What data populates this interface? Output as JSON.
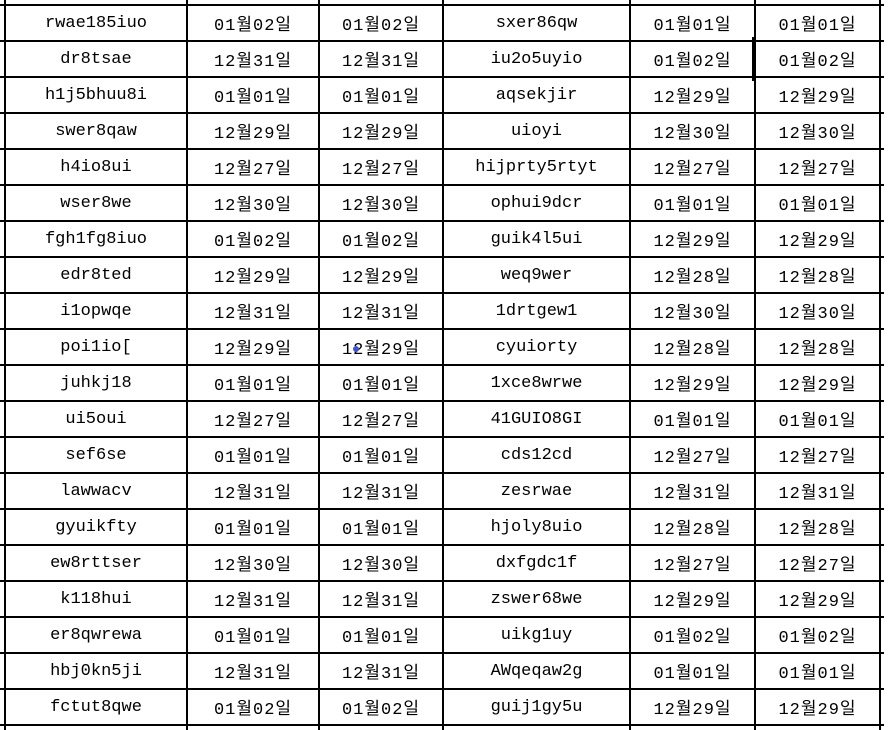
{
  "app": {
    "kind": "spreadsheet-grid",
    "grid_line_color": "#000000",
    "text_color": "#000000",
    "background_color": "#ffffff"
  },
  "annotations": {
    "blue_dot_color": "#4053cb",
    "blue_dot_cell": "row 10, second date column"
  },
  "table": {
    "columns": [
      {
        "name": "id-left"
      },
      {
        "name": "date-left-1"
      },
      {
        "name": "date-left-2"
      },
      {
        "name": "id-right"
      },
      {
        "name": "date-right-1"
      },
      {
        "name": "date-right-2"
      }
    ],
    "rows": [
      [
        "rwae185iuo",
        "01월02일",
        "01월02일",
        "sxer86qw",
        "01월01일",
        "01월01일"
      ],
      [
        "dr8tsae",
        "12월31일",
        "12월31일",
        "iu2o5uyio",
        "01월02일",
        "01월02일"
      ],
      [
        "h1j5bhuu8i",
        "01월01일",
        "01월01일",
        "aqsekjir",
        "12월29일",
        "12월29일"
      ],
      [
        "swer8qaw",
        "12월29일",
        "12월29일",
        "uioyi",
        "12월30일",
        "12월30일"
      ],
      [
        "h4io8ui",
        "12월27일",
        "12월27일",
        "hijprty5rtyt",
        "12월27일",
        "12월27일"
      ],
      [
        "wser8we",
        "12월30일",
        "12월30일",
        "ophui9dcr",
        "01월01일",
        "01월01일"
      ],
      [
        "fgh1fg8iuo",
        "01월02일",
        "01월02일",
        "guik4l5ui",
        "12월29일",
        "12월29일"
      ],
      [
        "edr8ted",
        "12월29일",
        "12월29일",
        "weq9wer",
        "12월28일",
        "12월28일"
      ],
      [
        "i1opwqe",
        "12월31일",
        "12월31일",
        "1drtgew1",
        "12월30일",
        "12월30일"
      ],
      [
        "poi1io[",
        "12월29일",
        "12월29일",
        "cyuiorty",
        "12월28일",
        "12월28일"
      ],
      [
        "juhkj18",
        "01월01일",
        "01월01일",
        "1xce8wrwe",
        "12월29일",
        "12월29일"
      ],
      [
        "ui5oui",
        "12월27일",
        "12월27일",
        "41GUIO8GI",
        "01월01일",
        "01월01일"
      ],
      [
        "sef6se",
        "01월01일",
        "01월01일",
        "cds12cd",
        "12월27일",
        "12월27일"
      ],
      [
        "lawwacv",
        "12월31일",
        "12월31일",
        "zesrwae",
        "12월31일",
        "12월31일"
      ],
      [
        "gyuikfty",
        "01월01일",
        "01월01일",
        "hjoly8uio",
        "12월28일",
        "12월28일"
      ],
      [
        "ew8rttser",
        "12월30일",
        "12월30일",
        "dxfgdc1f",
        "12월27일",
        "12월27일"
      ],
      [
        "k118hui",
        "12월31일",
        "12월31일",
        "zswer68we",
        "12월29일",
        "12월29일"
      ],
      [
        "er8qwrewa",
        "01월01일",
        "01월01일",
        "uikg1uy",
        "01월02일",
        "01월02일"
      ],
      [
        "hbj0kn5ji",
        "12월31일",
        "12월31일",
        "AWqeqaw2g",
        "01월01일",
        "01월01일"
      ],
      [
        "fctut8qwe",
        "01월02일",
        "01월02일",
        "guij1gy5u",
        "12월29일",
        "12월29일"
      ]
    ]
  }
}
